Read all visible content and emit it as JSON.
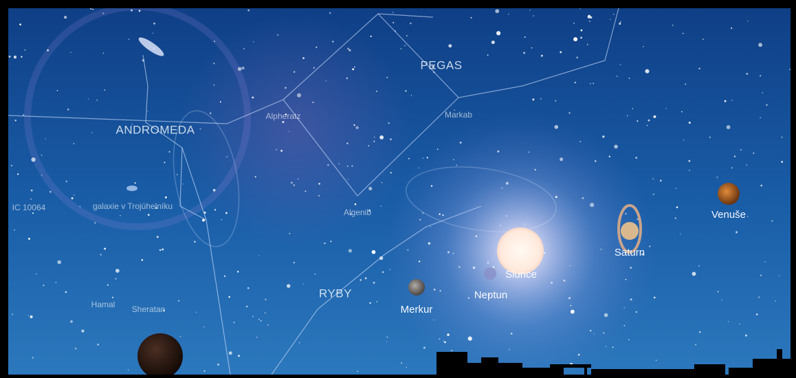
{
  "constellations": [
    {
      "label": "PEGAS"
    },
    {
      "label": "ANDROMEDA"
    },
    {
      "label": "RYBY"
    }
  ],
  "stars": [
    {
      "label": "Alpheratz"
    },
    {
      "label": "Markab"
    },
    {
      "label": "Algenib"
    },
    {
      "label": "Hamal"
    },
    {
      "label": "Sheratan"
    },
    {
      "label": "galaxie v Trojúhelníku"
    },
    {
      "label": "IC 10064"
    }
  ],
  "objects": [
    {
      "label": "Slunce"
    },
    {
      "label": "Merkur"
    },
    {
      "label": "Neptun"
    },
    {
      "label": "Saturn"
    },
    {
      "label": "Venuše"
    }
  ]
}
